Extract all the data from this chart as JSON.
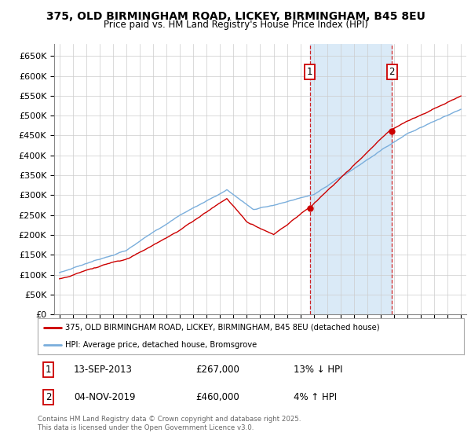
{
  "title": "375, OLD BIRMINGHAM ROAD, LICKEY, BIRMINGHAM, B45 8EU",
  "subtitle": "Price paid vs. HM Land Registry's House Price Index (HPI)",
  "legend_line1": "375, OLD BIRMINGHAM ROAD, LICKEY, BIRMINGHAM, B45 8EU (detached house)",
  "legend_line2": "HPI: Average price, detached house, Bromsgrove",
  "sale1_date": "13-SEP-2013",
  "sale1_price": "£267,000",
  "sale1_hpi": "13% ↓ HPI",
  "sale2_date": "04-NOV-2019",
  "sale2_price": "£460,000",
  "sale2_hpi": "4% ↑ HPI",
  "copyright": "Contains HM Land Registry data © Crown copyright and database right 2025.\nThis data is licensed under the Open Government Licence v3.0.",
  "ylim": [
    0,
    680000
  ],
  "yticks": [
    0,
    50000,
    100000,
    150000,
    200000,
    250000,
    300000,
    350000,
    400000,
    450000,
    500000,
    550000,
    600000,
    650000
  ],
  "ytick_labels": [
    "£0",
    "£50K",
    "£100K",
    "£150K",
    "£200K",
    "£250K",
    "£300K",
    "£350K",
    "£400K",
    "£450K",
    "£500K",
    "£550K",
    "£600K",
    "£650K"
  ],
  "red_color": "#cc0000",
  "blue_color": "#7aaedc",
  "shade_color": "#daeaf7",
  "grid_color": "#cccccc",
  "sale1_year": 2013.71,
  "sale2_year": 2019.84,
  "sale1_price_val": 267000,
  "sale2_price_val": 460000,
  "background_color": "#ffffff",
  "xlim_left": 1994.6,
  "xlim_right": 2025.4
}
